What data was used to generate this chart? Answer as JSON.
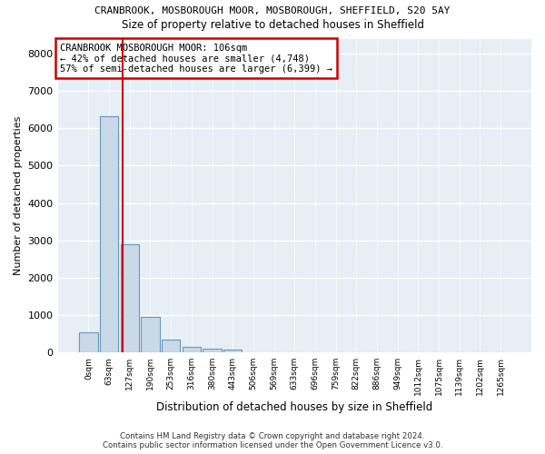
{
  "title_line1": "CRANBROOK, MOSBOROUGH MOOR, MOSBOROUGH, SHEFFIELD, S20 5AY",
  "title_line2": "Size of property relative to detached houses in Sheffield",
  "xlabel": "Distribution of detached houses by size in Sheffield",
  "ylabel": "Number of detached properties",
  "annotation_line1": "CRANBROOK MOSBOROUGH MOOR: 106sqm",
  "annotation_line2": "← 42% of detached houses are smaller (4,748)",
  "annotation_line3": "57% of semi-detached houses are larger (6,399) →",
  "bar_labels": [
    "0sqm",
    "63sqm",
    "127sqm",
    "190sqm",
    "253sqm",
    "316sqm",
    "380sqm",
    "443sqm",
    "506sqm",
    "569sqm",
    "633sqm",
    "696sqm",
    "759sqm",
    "822sqm",
    "886sqm",
    "949sqm",
    "1012sqm",
    "1075sqm",
    "1139sqm",
    "1202sqm",
    "1265sqm"
  ],
  "bar_values": [
    530,
    6330,
    2890,
    950,
    330,
    155,
    110,
    80,
    0,
    0,
    0,
    0,
    0,
    0,
    0,
    0,
    0,
    0,
    0,
    0,
    0
  ],
  "bar_color": "#c9d9e8",
  "bar_edgecolor": "#6699bb",
  "property_line_x": 1.67,
  "property_line_color": "#cc0000",
  "ylim": [
    0,
    8400
  ],
  "yticks": [
    0,
    1000,
    2000,
    3000,
    4000,
    5000,
    6000,
    7000,
    8000
  ],
  "background_color": "#e8eef5",
  "fig_background_color": "#ffffff",
  "grid_color": "#ffffff",
  "footer_line1": "Contains HM Land Registry data © Crown copyright and database right 2024.",
  "footer_line2": "Contains public sector information licensed under the Open Government Licence v3.0."
}
